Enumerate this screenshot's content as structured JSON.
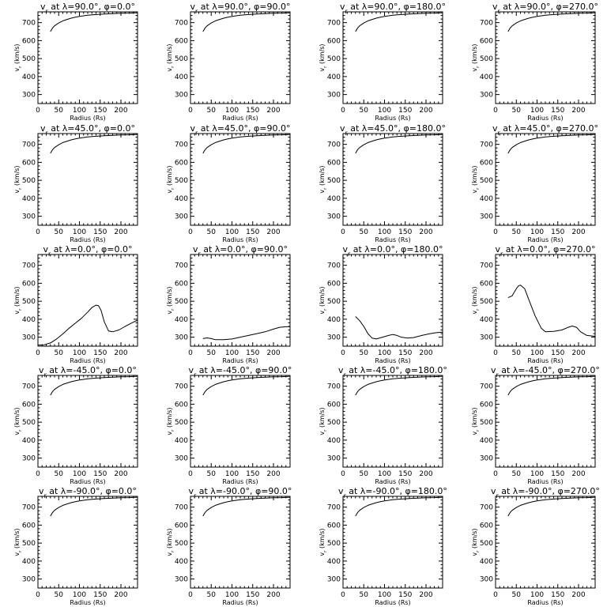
{
  "chart_data": [
    {
      "type": "line",
      "title": "v$_r$ at λ=90.0°, φ=0.0°",
      "xlabel": "Radius (Rs)",
      "ylabel": "v$_r$ (km/s)",
      "xlim": [
        0,
        240
      ],
      "ylim": [
        250,
        760
      ],
      "xticks": [
        0,
        50,
        100,
        150,
        200
      ],
      "yticks": [
        300,
        400,
        500,
        600,
        700
      ],
      "grid": false,
      "x": [
        30,
        35,
        40,
        50,
        60,
        70,
        80,
        90,
        100,
        120,
        140,
        160,
        180,
        200,
        220,
        240
      ],
      "y": [
        650,
        670,
        682,
        698,
        710,
        718,
        725,
        730,
        735,
        741,
        745,
        748,
        750,
        752,
        753,
        755
      ]
    },
    {
      "type": "line",
      "title": "v$_r$ at λ=90.0°, φ=90.0°",
      "xlabel": "Radius (Rs)",
      "ylabel": "v$_r$ (km/s)",
      "xlim": [
        0,
        240
      ],
      "ylim": [
        250,
        760
      ],
      "xticks": [
        0,
        50,
        100,
        150,
        200
      ],
      "yticks": [
        300,
        400,
        500,
        600,
        700
      ],
      "grid": false,
      "x": [
        30,
        35,
        40,
        50,
        60,
        70,
        80,
        90,
        100,
        120,
        140,
        160,
        180,
        200,
        220,
        240
      ],
      "y": [
        650,
        670,
        682,
        698,
        710,
        718,
        725,
        730,
        735,
        741,
        745,
        748,
        750,
        752,
        753,
        755
      ]
    },
    {
      "type": "line",
      "title": "v$_r$ at λ=90.0°, φ=180.0°",
      "xlabel": "Radius (Rs)",
      "ylabel": "v$_r$ (km/s)",
      "xlim": [
        0,
        240
      ],
      "ylim": [
        250,
        760
      ],
      "xticks": [
        0,
        50,
        100,
        150,
        200
      ],
      "yticks": [
        300,
        400,
        500,
        600,
        700
      ],
      "grid": false,
      "x": [
        30,
        35,
        40,
        50,
        60,
        70,
        80,
        90,
        100,
        120,
        140,
        160,
        180,
        200,
        220,
        240
      ],
      "y": [
        650,
        670,
        682,
        698,
        710,
        718,
        725,
        730,
        735,
        741,
        745,
        748,
        750,
        752,
        753,
        755
      ]
    },
    {
      "type": "line",
      "title": "v$_r$ at λ=90.0°, φ=270.0°",
      "xlabel": "Radius (Rs)",
      "ylabel": "v$_r$ (km/s)",
      "xlim": [
        0,
        240
      ],
      "ylim": [
        250,
        760
      ],
      "xticks": [
        0,
        50,
        100,
        150,
        200
      ],
      "yticks": [
        300,
        400,
        500,
        600,
        700
      ],
      "grid": false,
      "x": [
        30,
        35,
        40,
        50,
        60,
        70,
        80,
        90,
        100,
        120,
        140,
        160,
        180,
        200,
        220,
        240
      ],
      "y": [
        650,
        670,
        682,
        698,
        710,
        718,
        725,
        730,
        735,
        741,
        745,
        748,
        750,
        752,
        753,
        755
      ]
    },
    {
      "type": "line",
      "title": "v$_r$ at λ=45.0°, φ=0.0°",
      "xlabel": "Radius (Rs)",
      "ylabel": "v$_r$ (km/s)",
      "xlim": [
        0,
        240
      ],
      "ylim": [
        250,
        760
      ],
      "xticks": [
        0,
        50,
        100,
        150,
        200
      ],
      "yticks": [
        300,
        400,
        500,
        600,
        700
      ],
      "grid": false,
      "x": [
        30,
        35,
        40,
        50,
        60,
        70,
        80,
        90,
        100,
        120,
        140,
        160,
        180,
        200,
        220,
        240
      ],
      "y": [
        650,
        670,
        682,
        698,
        710,
        718,
        725,
        730,
        735,
        741,
        745,
        748,
        750,
        752,
        753,
        755
      ]
    },
    {
      "type": "line",
      "title": "v$_r$ at λ=45.0°, φ=90.0°",
      "xlabel": "Radius (Rs)",
      "ylabel": "v$_r$ (km/s)",
      "xlim": [
        0,
        240
      ],
      "ylim": [
        250,
        760
      ],
      "xticks": [
        0,
        50,
        100,
        150,
        200
      ],
      "yticks": [
        300,
        400,
        500,
        600,
        700
      ],
      "grid": false,
      "x": [
        30,
        35,
        40,
        50,
        60,
        70,
        80,
        90,
        100,
        120,
        140,
        160,
        180,
        200,
        220,
        240
      ],
      "y": [
        650,
        670,
        682,
        698,
        710,
        718,
        725,
        730,
        735,
        741,
        745,
        748,
        750,
        752,
        753,
        755
      ]
    },
    {
      "type": "line",
      "title": "v$_r$ at λ=45.0°, φ=180.0°",
      "xlabel": "Radius (Rs)",
      "ylabel": "v$_r$ (km/s)",
      "xlim": [
        0,
        240
      ],
      "ylim": [
        250,
        760
      ],
      "xticks": [
        0,
        50,
        100,
        150,
        200
      ],
      "yticks": [
        300,
        400,
        500,
        600,
        700
      ],
      "grid": false,
      "x": [
        30,
        35,
        40,
        50,
        60,
        70,
        80,
        90,
        100,
        120,
        140,
        160,
        180,
        200,
        220,
        240
      ],
      "y": [
        650,
        670,
        682,
        698,
        710,
        718,
        725,
        730,
        735,
        741,
        745,
        748,
        750,
        752,
        753,
        755
      ]
    },
    {
      "type": "line",
      "title": "v$_r$ at λ=45.0°, φ=270.0°",
      "xlabel": "Radius (Rs)",
      "ylabel": "v$_r$ (km/s)",
      "xlim": [
        0,
        240
      ],
      "ylim": [
        250,
        760
      ],
      "xticks": [
        0,
        50,
        100,
        150,
        200
      ],
      "yticks": [
        300,
        400,
        500,
        600,
        700
      ],
      "grid": false,
      "x": [
        30,
        35,
        40,
        50,
        60,
        70,
        80,
        90,
        100,
        120,
        140,
        160,
        180,
        200,
        220,
        240
      ],
      "y": [
        650,
        670,
        682,
        698,
        710,
        718,
        725,
        730,
        735,
        741,
        745,
        748,
        750,
        752,
        753,
        755
      ]
    },
    {
      "type": "line",
      "title": "v$_r$ at λ=0.0°, φ=0.0°",
      "xlabel": "Radius (Rs)",
      "ylabel": "v$_r$ (km/s)",
      "xlim": [
        0,
        240
      ],
      "ylim": [
        250,
        760
      ],
      "xticks": [
        0,
        50,
        100,
        150,
        200
      ],
      "yticks": [
        300,
        400,
        500,
        600,
        700
      ],
      "grid": false,
      "x": [
        0,
        15,
        30,
        45,
        60,
        75,
        90,
        105,
        120,
        130,
        140,
        146,
        152,
        160,
        170,
        180,
        195,
        210,
        225,
        240
      ],
      "y": [
        256,
        258,
        268,
        290,
        318,
        350,
        378,
        405,
        440,
        465,
        478,
        475,
        450,
        385,
        335,
        330,
        340,
        360,
        378,
        395
      ]
    },
    {
      "type": "line",
      "title": "v$_r$ at λ=0.0°, φ=90.0°",
      "xlabel": "Radius (Rs)",
      "ylabel": "v$_r$ (km/s)",
      "xlim": [
        0,
        240
      ],
      "ylim": [
        250,
        760
      ],
      "xticks": [
        0,
        50,
        100,
        150,
        200
      ],
      "yticks": [
        300,
        400,
        500,
        600,
        700
      ],
      "grid": false,
      "x": [
        30,
        40,
        50,
        60,
        80,
        100,
        120,
        140,
        160,
        180,
        200,
        215,
        230,
        240
      ],
      "y": [
        292,
        296,
        292,
        286,
        286,
        290,
        300,
        310,
        320,
        330,
        345,
        355,
        358,
        358
      ]
    },
    {
      "type": "line",
      "title": "v$_r$ at λ=0.0°, φ=180.0°",
      "xlabel": "Radius (Rs)",
      "ylabel": "v$_r$ (km/s)",
      "xlim": [
        0,
        240
      ],
      "ylim": [
        250,
        760
      ],
      "xticks": [
        0,
        50,
        100,
        150,
        200
      ],
      "yticks": [
        300,
        400,
        500,
        600,
        700
      ],
      "grid": false,
      "x": [
        30,
        40,
        50,
        60,
        70,
        80,
        95,
        110,
        120,
        130,
        140,
        155,
        170,
        190,
        210,
        225,
        240
      ],
      "y": [
        415,
        392,
        360,
        320,
        295,
        290,
        300,
        310,
        315,
        310,
        300,
        295,
        298,
        310,
        320,
        325,
        328
      ]
    },
    {
      "type": "line",
      "title": "v$_r$ at λ=0.0°, φ=270.0°",
      "xlabel": "Radius (Rs)",
      "ylabel": "v$_r$ (km/s)",
      "xlim": [
        0,
        240
      ],
      "ylim": [
        250,
        760
      ],
      "xticks": [
        0,
        50,
        100,
        150,
        200
      ],
      "yticks": [
        300,
        400,
        500,
        600,
        700
      ],
      "grid": false,
      "x": [
        30,
        40,
        50,
        55,
        60,
        70,
        80,
        95,
        110,
        120,
        140,
        160,
        175,
        185,
        195,
        205,
        220,
        240
      ],
      "y": [
        520,
        530,
        570,
        585,
        590,
        570,
        510,
        420,
        350,
        330,
        332,
        340,
        355,
        362,
        355,
        330,
        310,
        305
      ]
    },
    {
      "type": "line",
      "title": "v$_r$ at λ=-45.0°, φ=0.0°",
      "xlabel": "Radius (Rs)",
      "ylabel": "v$_r$ (km/s)",
      "xlim": [
        0,
        240
      ],
      "ylim": [
        250,
        760
      ],
      "xticks": [
        0,
        50,
        100,
        150,
        200
      ],
      "yticks": [
        300,
        400,
        500,
        600,
        700
      ],
      "grid": false,
      "x": [
        30,
        35,
        40,
        50,
        60,
        70,
        80,
        90,
        100,
        120,
        140,
        160,
        180,
        200,
        220,
        240
      ],
      "y": [
        650,
        670,
        682,
        698,
        710,
        718,
        725,
        730,
        735,
        741,
        745,
        748,
        750,
        752,
        753,
        755
      ]
    },
    {
      "type": "line",
      "title": "v$_r$ at λ=-45.0°, φ=90.0°",
      "xlabel": "Radius (Rs)",
      "ylabel": "v$_r$ (km/s)",
      "xlim": [
        0,
        240
      ],
      "ylim": [
        250,
        760
      ],
      "xticks": [
        0,
        50,
        100,
        150,
        200
      ],
      "yticks": [
        300,
        400,
        500,
        600,
        700
      ],
      "grid": false,
      "x": [
        30,
        35,
        40,
        50,
        60,
        70,
        80,
        90,
        100,
        120,
        140,
        160,
        180,
        200,
        220,
        240
      ],
      "y": [
        650,
        670,
        682,
        698,
        710,
        718,
        725,
        730,
        735,
        741,
        745,
        748,
        750,
        752,
        753,
        755
      ]
    },
    {
      "type": "line",
      "title": "v$_r$ at λ=-45.0°, φ=180.0°",
      "xlabel": "Radius (Rs)",
      "ylabel": "v$_r$ (km/s)",
      "xlim": [
        0,
        240
      ],
      "ylim": [
        250,
        760
      ],
      "xticks": [
        0,
        50,
        100,
        150,
        200
      ],
      "yticks": [
        300,
        400,
        500,
        600,
        700
      ],
      "grid": false,
      "x": [
        30,
        35,
        40,
        50,
        60,
        70,
        80,
        90,
        100,
        120,
        140,
        160,
        180,
        200,
        220,
        240
      ],
      "y": [
        650,
        670,
        682,
        698,
        710,
        718,
        725,
        730,
        735,
        741,
        745,
        748,
        750,
        752,
        753,
        755
      ]
    },
    {
      "type": "line",
      "title": "v$_r$ at λ=-45.0°, φ=270.0°",
      "xlabel": "Radius (Rs)",
      "ylabel": "v$_r$ (km/s)",
      "xlim": [
        0,
        240
      ],
      "ylim": [
        250,
        760
      ],
      "xticks": [
        0,
        50,
        100,
        150,
        200
      ],
      "yticks": [
        300,
        400,
        500,
        600,
        700
      ],
      "grid": false,
      "x": [
        30,
        35,
        40,
        50,
        60,
        70,
        80,
        90,
        100,
        120,
        140,
        160,
        180,
        200,
        220,
        240
      ],
      "y": [
        650,
        670,
        682,
        698,
        710,
        718,
        725,
        730,
        735,
        741,
        745,
        748,
        750,
        752,
        753,
        755
      ]
    },
    {
      "type": "line",
      "title": "v$_r$ at λ=-90.0°, φ=0.0°",
      "xlabel": "Radius (Rs)",
      "ylabel": "v$_r$ (km/s)",
      "xlim": [
        0,
        240
      ],
      "ylim": [
        250,
        760
      ],
      "xticks": [
        0,
        50,
        100,
        150,
        200
      ],
      "yticks": [
        300,
        400,
        500,
        600,
        700
      ],
      "grid": false,
      "x": [
        30,
        35,
        40,
        50,
        60,
        70,
        80,
        90,
        100,
        120,
        140,
        160,
        180,
        200,
        220,
        240
      ],
      "y": [
        650,
        670,
        682,
        698,
        710,
        718,
        725,
        730,
        735,
        741,
        745,
        748,
        750,
        752,
        753,
        755
      ]
    },
    {
      "type": "line",
      "title": "v$_r$ at λ=-90.0°, φ=90.0°",
      "xlabel": "Radius (Rs)",
      "ylabel": "v$_r$ (km/s)",
      "xlim": [
        0,
        240
      ],
      "ylim": [
        250,
        760
      ],
      "xticks": [
        0,
        50,
        100,
        150,
        200
      ],
      "yticks": [
        300,
        400,
        500,
        600,
        700
      ],
      "grid": false,
      "x": [
        30,
        35,
        40,
        50,
        60,
        70,
        80,
        90,
        100,
        120,
        140,
        160,
        180,
        200,
        220,
        240
      ],
      "y": [
        650,
        670,
        682,
        698,
        710,
        718,
        725,
        730,
        735,
        741,
        745,
        748,
        750,
        752,
        753,
        755
      ]
    },
    {
      "type": "line",
      "title": "v$_r$ at λ=-90.0°, φ=180.0°",
      "xlabel": "Radius (Rs)",
      "ylabel": "v$_r$ (km/s)",
      "xlim": [
        0,
        240
      ],
      "ylim": [
        250,
        760
      ],
      "xticks": [
        0,
        50,
        100,
        150,
        200
      ],
      "yticks": [
        300,
        400,
        500,
        600,
        700
      ],
      "grid": false,
      "x": [
        30,
        35,
        40,
        50,
        60,
        70,
        80,
        90,
        100,
        120,
        140,
        160,
        180,
        200,
        220,
        240
      ],
      "y": [
        650,
        670,
        682,
        698,
        710,
        718,
        725,
        730,
        735,
        741,
        745,
        748,
        750,
        752,
        753,
        755
      ]
    },
    {
      "type": "line",
      "title": "v$_r$ at λ=-90.0°, φ=270.0°",
      "xlabel": "Radius (Rs)",
      "ylabel": "v$_r$ (km/s)",
      "xlim": [
        0,
        240
      ],
      "ylim": [
        250,
        760
      ],
      "xticks": [
        0,
        50,
        100,
        150,
        200
      ],
      "yticks": [
        300,
        400,
        500,
        600,
        700
      ],
      "grid": false,
      "x": [
        30,
        35,
        40,
        50,
        60,
        70,
        80,
        90,
        100,
        120,
        140,
        160,
        180,
        200,
        220,
        240
      ],
      "y": [
        650,
        670,
        682,
        698,
        710,
        718,
        725,
        730,
        735,
        741,
        745,
        748,
        750,
        752,
        753,
        755
      ]
    }
  ]
}
